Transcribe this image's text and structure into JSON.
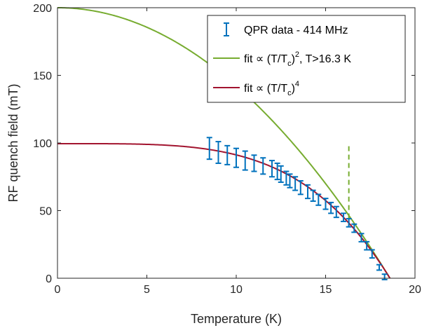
{
  "chart_data": {
    "type": "scatter",
    "title": "",
    "xlabel": "Temperature (K)",
    "ylabel": "RF quench field (mT)",
    "xlim": [
      0,
      20
    ],
    "ylim": [
      0,
      200
    ],
    "xticks": [
      0,
      5,
      10,
      15,
      20
    ],
    "yticks": [
      0,
      50,
      100,
      150,
      200
    ],
    "grid": false,
    "legend_position": "top-right",
    "series": [
      {
        "name": "QPR data - 414 MHz",
        "type": "errorbar",
        "color": "#0072BD",
        "x": [
          8.5,
          9.0,
          9.5,
          10.0,
          10.5,
          11.0,
          11.5,
          12.0,
          12.3,
          12.5,
          12.8,
          13.0,
          13.3,
          13.6,
          14.0,
          14.3,
          14.6,
          15.0,
          15.3,
          15.6,
          16.0,
          16.3,
          16.6,
          17.0,
          17.3,
          17.6,
          18.0,
          18.3
        ],
        "y": [
          96,
          93,
          91,
          89,
          87,
          85,
          83,
          81,
          79,
          77,
          74,
          72,
          70,
          67,
          64,
          61,
          58,
          55,
          52,
          49,
          45,
          41,
          37,
          30,
          24,
          18,
          8,
          1
        ],
        "err": [
          8,
          8,
          7,
          7,
          7,
          6,
          6,
          6,
          6,
          6,
          5,
          5,
          5,
          5,
          5,
          4,
          4,
          4,
          4,
          4,
          3,
          3,
          3,
          3,
          3,
          3,
          2,
          2
        ]
      },
      {
        "name": "fit ∝ (T/T",
        "sub": "c",
        "sup": "2",
        "suffix": ", T>16.3 K",
        "type": "line",
        "model": "B0*(1-(T/Tc)^2)",
        "B0": 200,
        "Tc": 18.6,
        "color": "#77AC30"
      },
      {
        "name": "fit ∝ (T/T",
        "sub": "c",
        "sup": "4",
        "suffix": "",
        "type": "line",
        "model": "B0*(1-(T/Tc)^4)",
        "B0": 99.5,
        "Tc": 18.6,
        "color": "#A2142F"
      }
    ],
    "annotations": [
      {
        "type": "vline",
        "x": 16.3,
        "y_range": [
          38,
          100
        ],
        "style": "dashed",
        "color": "#77AC30"
      }
    ]
  }
}
